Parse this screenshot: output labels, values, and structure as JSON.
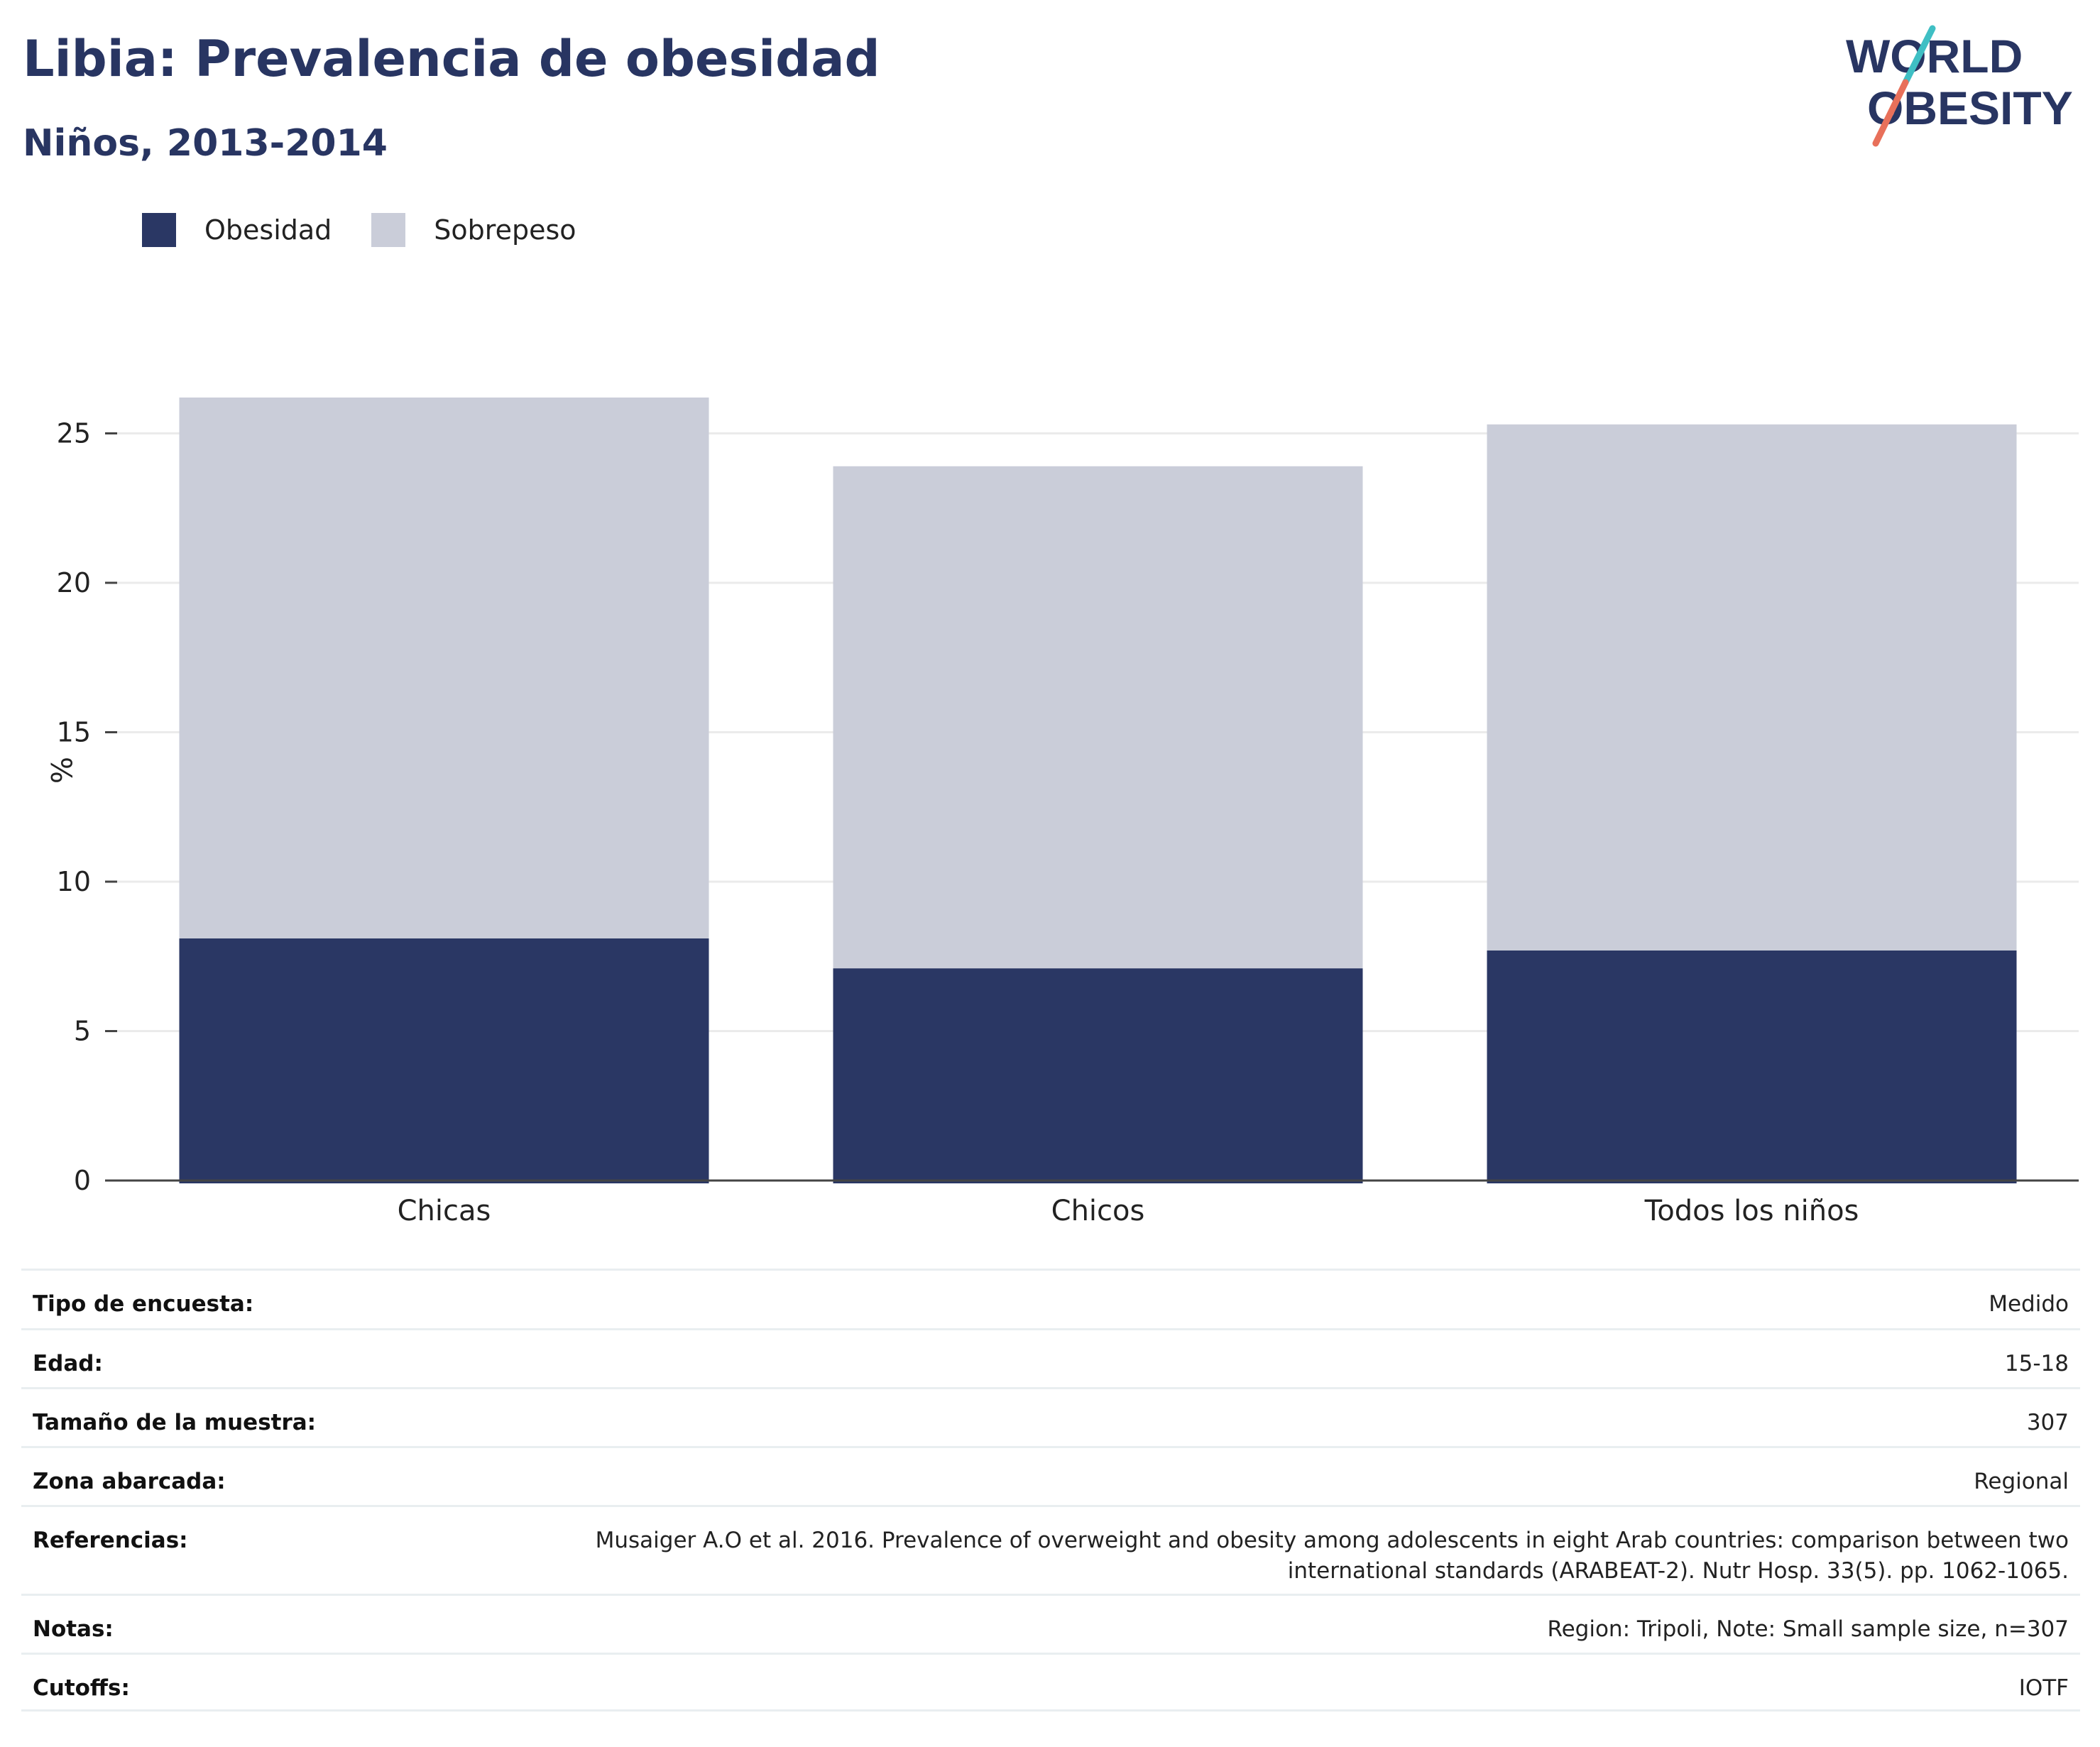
{
  "header": {
    "title": "Libia: Prevalencia de obesidad",
    "subtitle": "Niños, 2013-2014"
  },
  "logo": {
    "line1": "WORLD",
    "line2": "OBESITY",
    "colors": {
      "text": "#283562",
      "slash_top": "#3fbfc4",
      "slash_bottom": "#e8705a"
    }
  },
  "chart_data": {
    "type": "bar",
    "stacked": true,
    "categories": [
      "Chicas",
      "Chicos",
      "Todos los niños"
    ],
    "series": [
      {
        "name": "Obesidad",
        "color": "#2a3764",
        "values": [
          8.1,
          7.1,
          7.7
        ]
      },
      {
        "name": "Sobrepeso",
        "color": "#cacdd9",
        "values": [
          18.1,
          16.8,
          17.6
        ]
      }
    ],
    "ylabel": "%",
    "xlabel": "",
    "ylim": [
      0,
      27
    ],
    "yticks": [
      0,
      5,
      10,
      15,
      20,
      25
    ],
    "grid": true,
    "legend": "top-left"
  },
  "info": {
    "rows": [
      {
        "label": "Tipo de encuesta:",
        "value": "Medido"
      },
      {
        "label": "Edad:",
        "value": "15-18"
      },
      {
        "label": "Tamaño de la muestra:",
        "value": "307"
      },
      {
        "label": "Zona abarcada:",
        "value": "Regional"
      },
      {
        "label": "Referencias:",
        "value": "Musaiger A.O et al. 2016. Prevalence of overweight and obesity among adolescents in eight Arab countries: comparison between two international standards (ARABEAT-2). Nutr Hosp. 33(5). pp. 1062-1065."
      },
      {
        "label": "Notas:",
        "value": "Region: Tripoli, Note: Small sample size, n=307"
      },
      {
        "label": "Cutoffs:",
        "value": "IOTF"
      }
    ]
  }
}
